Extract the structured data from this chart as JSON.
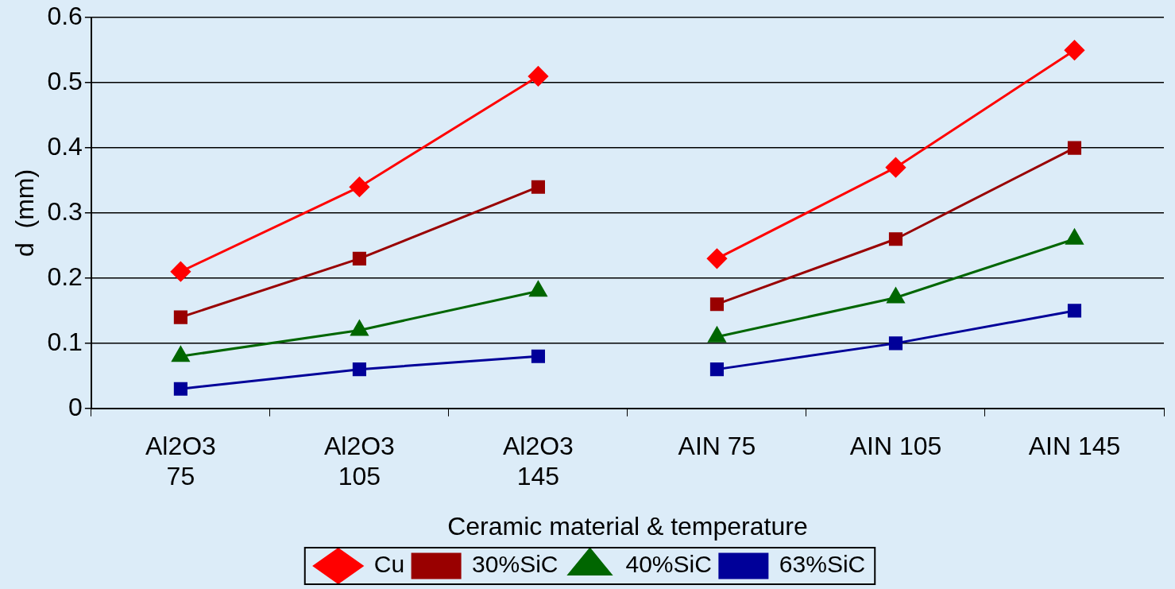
{
  "chart_data": {
    "type": "line",
    "xlabel": "Ceramic material & temperature",
    "ylabel": "d  (mm)",
    "categories": [
      "Al2O3 75",
      "Al2O3 105",
      "Al2O3 145",
      "AIN 75",
      "AIN 105",
      "AIN 145"
    ],
    "ylim": [
      0,
      0.6
    ],
    "yticks": [
      0,
      0.1,
      0.2,
      0.3,
      0.4,
      0.5,
      0.6
    ],
    "grid": "y",
    "legend": "bottom",
    "series": [
      {
        "name": "Cu",
        "color": "#ff0000",
        "marker": "diamond",
        "values": [
          0.21,
          0.34,
          0.51,
          null,
          null,
          null
        ]
      },
      {
        "color": "#ff0000",
        "marker": "diamond",
        "values": [
          null,
          null,
          null,
          0.23,
          0.37,
          0.55
        ]
      },
      {
        "name": "30%SiC",
        "color": "#990000",
        "marker": "square",
        "values": [
          0.14,
          0.23,
          0.34,
          null,
          null,
          null
        ]
      },
      {
        "color": "#990000",
        "marker": "square",
        "values": [
          null,
          null,
          null,
          0.16,
          0.26,
          0.4
        ]
      },
      {
        "name": "40%SiC",
        "color": "#006600",
        "marker": "triangle",
        "values": [
          0.08,
          0.12,
          0.18,
          null,
          null,
          null
        ]
      },
      {
        "color": "#006600",
        "marker": "triangle",
        "values": [
          null,
          null,
          null,
          0.11,
          0.17,
          0.26
        ]
      },
      {
        "name": "63%SiC",
        "color": "#000099",
        "marker": "square",
        "values": [
          0.03,
          0.06,
          0.08,
          null,
          null,
          null
        ]
      },
      {
        "color": "#000099",
        "marker": "square",
        "values": [
          null,
          null,
          null,
          0.06,
          0.1,
          0.15
        ]
      }
    ]
  }
}
